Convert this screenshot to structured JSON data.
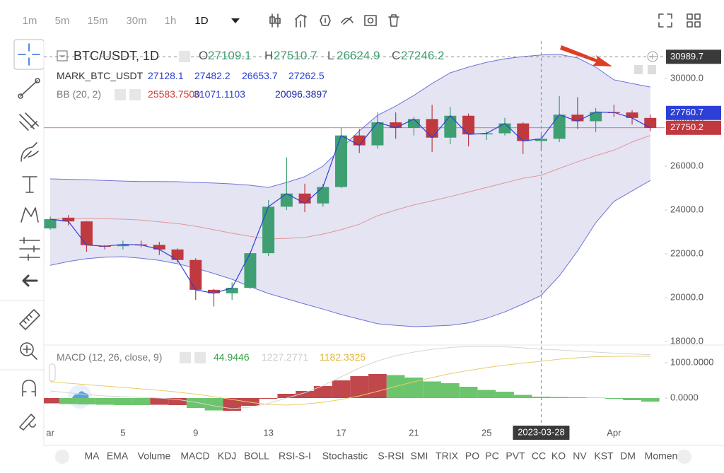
{
  "toolbar": {
    "intervals": [
      "1m",
      "5m",
      "15m",
      "30m",
      "1h",
      "1D"
    ],
    "active": 5
  },
  "legend": {
    "symbol": "BTC/USDT, 1D",
    "ohlc": [
      {
        "key": "O",
        "value": 27109.1
      },
      {
        "key": "H",
        "value": 27510.7
      },
      {
        "key": "L",
        "value": 26624.9
      },
      {
        "key": "C",
        "value": 27246.2
      }
    ],
    "mark": {
      "name": "MARK_BTC_USDT",
      "values": [
        27128.1,
        27482.2,
        26653.7,
        27262.5
      ]
    },
    "bb": {
      "name": "BB (20, 2)",
      "values": [
        "25583.7500",
        "31071.1103",
        "20096.3897"
      ]
    },
    "macd": {
      "name": "MACD (12, 26, close, 9)",
      "values": [
        44.9446,
        1227.2771,
        1182.3325
      ]
    }
  },
  "chart": {
    "type": "candlestick",
    "watermark": "Gate.io",
    "x_labels": [
      "ar",
      null,
      null,
      null,
      "5",
      null,
      null,
      null,
      "9",
      null,
      null,
      null,
      "13",
      null,
      null,
      null,
      "17",
      null,
      null,
      null,
      "21",
      null,
      null,
      null,
      "25",
      null,
      null,
      null,
      null,
      null,
      null,
      "Apr",
      null,
      null
    ],
    "candles": [
      [
        23160,
        23700,
        23100,
        23580
      ],
      [
        23650,
        23770,
        23300,
        23480
      ],
      [
        23480,
        23500,
        22100,
        22400
      ],
      [
        22370,
        22400,
        22200,
        22350
      ],
      [
        22350,
        22600,
        22200,
        22430
      ],
      [
        22430,
        22600,
        22300,
        22410
      ],
      [
        22410,
        22550,
        21950,
        22200
      ],
      [
        22200,
        22250,
        21600,
        21720
      ],
      [
        21720,
        21800,
        19900,
        20360
      ],
      [
        20360,
        20400,
        19600,
        20200
      ],
      [
        20200,
        20700,
        19900,
        20450
      ],
      [
        20450,
        22100,
        20400,
        22030
      ],
      [
        22030,
        24450,
        21900,
        24150
      ],
      [
        24150,
        26400,
        24000,
        24750
      ],
      [
        24750,
        25200,
        23900,
        24300
      ],
      [
        24300,
        25200,
        24150,
        25050
      ],
      [
        25050,
        27750,
        25000,
        27400
      ],
      [
        27400,
        27700,
        26600,
        26950
      ],
      [
        26950,
        28450,
        26800,
        28000
      ],
      [
        28000,
        28450,
        27250,
        27750
      ],
      [
        27750,
        28250,
        27400,
        28150
      ],
      [
        28150,
        28800,
        26650,
        27300
      ],
      [
        27300,
        28700,
        27000,
        28300
      ],
      [
        28300,
        28400,
        26900,
        27450
      ],
      [
        27450,
        27600,
        27200,
        27500
      ],
      [
        27500,
        28200,
        27400,
        27950
      ],
      [
        27950,
        28000,
        26550,
        27150
      ],
      [
        27150,
        27450,
        26700,
        27250
      ],
      [
        27250,
        29200,
        27100,
        28350
      ],
      [
        28350,
        29150,
        27700,
        28050
      ],
      [
        28050,
        28650,
        27550,
        28470
      ],
      [
        28470,
        28800,
        28250,
        28450
      ],
      [
        28450,
        28550,
        27900,
        28200
      ],
      [
        28200,
        28350,
        27600,
        27750
      ]
    ],
    "up_color": "#3f9f72",
    "down_color": "#c0393f",
    "bb": {
      "upper": [
        25420,
        25400,
        25380,
        25350,
        25320,
        25300,
        25300,
        25290,
        25260,
        25230,
        25190,
        25130,
        25030,
        25260,
        25520,
        26000,
        26810,
        27610,
        28320,
        28740,
        29230,
        29770,
        30260,
        30520,
        30740,
        30900,
        31000,
        31070,
        31100,
        30940,
        30520,
        29940,
        29770,
        29610
      ],
      "middle": [
        23580,
        23600,
        23620,
        23600,
        23580,
        23540,
        23460,
        23380,
        23260,
        23100,
        22940,
        22800,
        22680,
        22700,
        22750,
        22900,
        23100,
        23350,
        23740,
        24000,
        24230,
        24420,
        24610,
        24820,
        25030,
        25240,
        25450,
        25580,
        25900,
        26200,
        26480,
        26730,
        27100,
        27400
      ],
      "lower": [
        21480,
        21650,
        21780,
        21850,
        21870,
        21800,
        21700,
        21550,
        21350,
        21100,
        20840,
        20500,
        20190,
        19950,
        19710,
        19480,
        19230,
        19020,
        18810,
        18740,
        18680,
        18700,
        18740,
        18850,
        19060,
        19350,
        19710,
        20100,
        21000,
        22130,
        23420,
        24390,
        24870,
        25350
      ]
    },
    "ylim": [
      17840,
      31710
    ],
    "yticks": [
      {
        "value": 30000,
        "label": "30000.0"
      },
      {
        "value": 28000,
        "label": "28000.0"
      },
      {
        "value": 26000,
        "label": "26000.0"
      },
      {
        "value": 24000,
        "label": "24000.0"
      },
      {
        "value": 22000,
        "label": "22000.0"
      },
      {
        "value": 20000,
        "label": "20000.0"
      },
      {
        "value": 18000,
        "label": "18000.0"
      }
    ],
    "mark_price": 27760.7,
    "last_price": 27750.2,
    "crosshair": {
      "x_label": "2023-03-28",
      "price": 30989.7
    }
  },
  "macd": {
    "histogram": [
      -150,
      -170,
      -180,
      -190,
      -200,
      -200,
      -190,
      -200,
      -280,
      -350,
      -360,
      -220,
      -20,
      120,
      200,
      340,
      500,
      620,
      680,
      650,
      580,
      470,
      420,
      320,
      230,
      180,
      90,
      40,
      30,
      20,
      10,
      -20,
      -60,
      -100
    ],
    "histogram_side": [
      "down",
      "up",
      "up",
      "up",
      "up",
      "up",
      "down",
      "down",
      "up",
      "up",
      "down",
      "down",
      "down",
      "down",
      "down",
      "down",
      "down",
      "down",
      "down",
      "up",
      "up",
      "up",
      "up",
      "up",
      "up",
      "up",
      "up",
      "up",
      "up",
      "up",
      "up",
      "up",
      "up",
      "up"
    ],
    "colors": {
      "up": "#6cc56c",
      "down": "#c0474b"
    },
    "dif": [
      200,
      150,
      100,
      60,
      40,
      20,
      0,
      -40,
      -120,
      -220,
      -300,
      -260,
      -150,
      0,
      150,
      350,
      600,
      850,
      1050,
      1200,
      1300,
      1380,
      1430,
      1460,
      1460,
      1450,
      1420,
      1380,
      1360,
      1330,
      1300,
      1270,
      1250,
      1227
    ],
    "dea": [
      460,
      420,
      380,
      340,
      300,
      260,
      220,
      170,
      110,
      40,
      -40,
      -120,
      -180,
      -200,
      -170,
      -120,
      -40,
      60,
      190,
      330,
      460,
      580,
      690,
      780,
      860,
      930,
      990,
      1040,
      1100,
      1140,
      1170,
      1180,
      1185,
      1182
    ],
    "ylim": [
      -740,
      1420
    ],
    "yticks": [
      {
        "value": 1000,
        "label": "1000.0000"
      },
      {
        "value": 0,
        "label": "0.0000"
      }
    ]
  },
  "indicator_tabs": [
    "MA",
    "EMA",
    "Volume",
    "MACD",
    "KDJ",
    "BOLL",
    "RSI-S-I",
    "Stochastic",
    "S-RSI",
    "SMI",
    "TRIX",
    "PO",
    "PC",
    "PVT",
    "CC",
    "KO",
    "NV",
    "KST",
    "DM",
    "Momen"
  ]
}
